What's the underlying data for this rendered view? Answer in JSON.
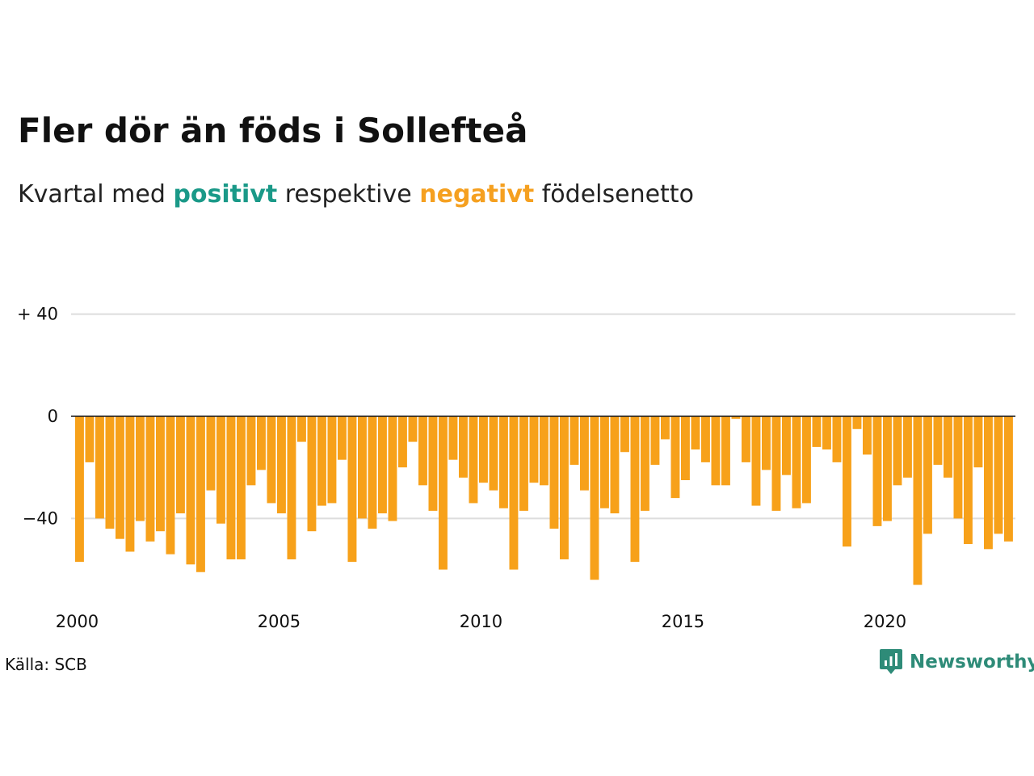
{
  "title": "Fler dör än föds i Sollefteå",
  "subtitle": {
    "prefix": "Kvartal med",
    "positive": "positivt",
    "middle": "respektive",
    "negative": "negativt",
    "suffix": "födelsenetto"
  },
  "colors": {
    "positive": "#1a9988",
    "negative": "#f5a020",
    "bar": "#f7a11a",
    "grid": "#dddddd",
    "baseline": "#111111",
    "brand": "#2e8b78"
  },
  "source": "Källa: SCB",
  "brand": {
    "name": "Newsworthy",
    "icon": "newsworthy-logo-icon"
  },
  "chart_data": {
    "type": "bar",
    "title": "Fler dör än föds i Sollefteå",
    "subtitle": "Kvartal med positivt respektive negativt födelsenetto",
    "xlabel": "",
    "ylabel": "",
    "y_ticks": [
      {
        "value": 40,
        "label": "+ 40"
      },
      {
        "value": 0,
        "label": "0"
      },
      {
        "value": -40,
        "label": "−40"
      }
    ],
    "x_ticks": [
      "2000",
      "2005",
      "2010",
      "2015",
      "2020"
    ],
    "ylim": [
      -70,
      42
    ],
    "grid": true,
    "start_period": "2000 Q1",
    "series": [
      {
        "values": [
          -57,
          -18,
          -40,
          -44,
          -48,
          -53,
          -41,
          -49,
          -45,
          -54,
          -38,
          -58,
          -61,
          -29,
          -42,
          -56,
          -56,
          -27,
          -21,
          -34,
          -38,
          -56,
          -10,
          -45,
          -35,
          -34,
          -17,
          -57,
          -40,
          -44,
          -38,
          -41,
          -20,
          -10,
          -27,
          -37,
          -60,
          -17,
          -24,
          -34,
          -26,
          -29,
          -36,
          -60,
          -37,
          -26,
          -27,
          -44,
          -56,
          -19,
          -29,
          -64,
          -36,
          -38,
          -14,
          -57,
          -37,
          -19,
          -9,
          -32,
          -25,
          -13,
          -18,
          -27,
          -27,
          -1,
          -18,
          -35,
          -21,
          -37,
          -23,
          -36,
          -34,
          -12,
          -13,
          -18,
          -51,
          -5,
          -15,
          -43,
          -41,
          -27,
          -24,
          -66,
          -46,
          -19,
          -24,
          -40,
          -50,
          -20,
          -52,
          -46,
          -49
        ]
      }
    ]
  }
}
